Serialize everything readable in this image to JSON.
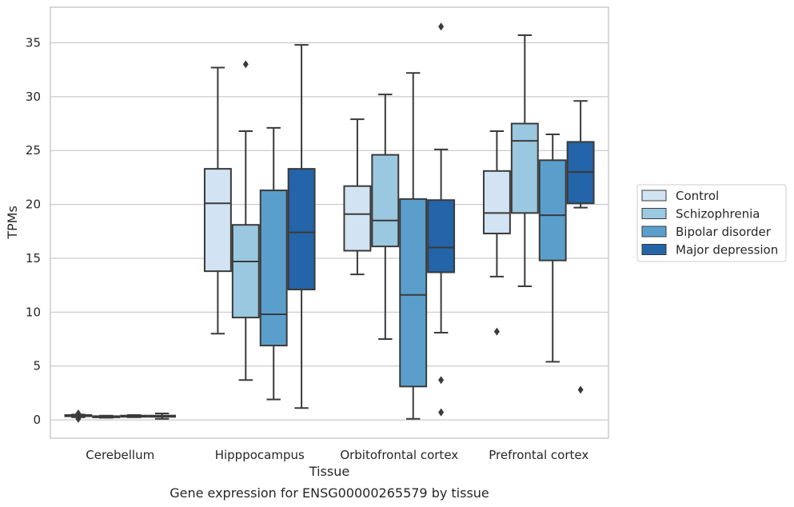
{
  "chart_data": {
    "type": "box",
    "title": "",
    "caption": "Gene expression for ENSG00000265579 by tissue",
    "xlabel": "Tissue",
    "ylabel": "TPMs",
    "ylim": [
      -1.7,
      38.3
    ],
    "yticks": [
      0,
      5,
      10,
      15,
      20,
      25,
      30,
      35
    ],
    "grid": "horizontal",
    "legend_position": "right",
    "categories": [
      "Cerebellum",
      "Hipppocampus",
      "Orbitofrontal cortex",
      "Prefrontal cortex"
    ],
    "series": [
      {
        "name": "Control",
        "color": "#d2e3f3",
        "boxes": [
          {
            "whislo": 0.25,
            "q1": 0.35,
            "med": 0.4,
            "q3": 0.45,
            "whishi": 0.5,
            "fliers": [
              0.1,
              0.6
            ]
          },
          {
            "whislo": 8.0,
            "q1": 13.8,
            "med": 20.1,
            "q3": 23.3,
            "whishi": 32.7,
            "fliers": []
          },
          {
            "whislo": 13.5,
            "q1": 15.7,
            "med": 19.1,
            "q3": 21.7,
            "whishi": 27.9,
            "fliers": []
          },
          {
            "whislo": 13.3,
            "q1": 17.3,
            "med": 19.2,
            "q3": 23.1,
            "whishi": 26.8,
            "fliers": [
              8.2
            ]
          }
        ]
      },
      {
        "name": "Schizophrenia",
        "color": "#9ac8e0",
        "boxes": [
          {
            "whislo": 0.2,
            "q1": 0.25,
            "med": 0.3,
            "q3": 0.35,
            "whishi": 0.4,
            "fliers": []
          },
          {
            "whislo": 3.7,
            "q1": 9.5,
            "med": 14.7,
            "q3": 18.1,
            "whishi": 26.8,
            "fliers": [
              33.0
            ]
          },
          {
            "whislo": 7.5,
            "q1": 16.1,
            "med": 18.5,
            "q3": 24.6,
            "whishi": 30.2,
            "fliers": []
          },
          {
            "whislo": 12.4,
            "q1": 19.2,
            "med": 25.9,
            "q3": 27.5,
            "whishi": 35.7,
            "fliers": []
          }
        ]
      },
      {
        "name": "Bipolar disorder",
        "color": "#5a9fcc",
        "boxes": [
          {
            "whislo": 0.25,
            "q1": 0.3,
            "med": 0.35,
            "q3": 0.4,
            "whishi": 0.45,
            "fliers": []
          },
          {
            "whislo": 1.9,
            "q1": 6.9,
            "med": 9.8,
            "q3": 21.3,
            "whishi": 27.1,
            "fliers": []
          },
          {
            "whislo": 0.1,
            "q1": 3.1,
            "med": 11.6,
            "q3": 20.5,
            "whishi": 32.2,
            "fliers": []
          },
          {
            "whislo": 5.4,
            "q1": 14.8,
            "med": 19.0,
            "q3": 24.1,
            "whishi": 26.5,
            "fliers": []
          }
        ]
      },
      {
        "name": "Major depression",
        "color": "#2464a8",
        "boxes": [
          {
            "whislo": 0.1,
            "q1": 0.3,
            "med": 0.35,
            "q3": 0.4,
            "whishi": 0.6,
            "fliers": []
          },
          {
            "whislo": 1.1,
            "q1": 12.1,
            "med": 17.4,
            "q3": 23.3,
            "whishi": 34.8,
            "fliers": []
          },
          {
            "whislo": 8.1,
            "q1": 13.7,
            "med": 16.0,
            "q3": 20.4,
            "whishi": 25.1,
            "fliers": [
              3.7,
              0.7,
              36.5
            ]
          },
          {
            "whislo": 19.7,
            "q1": 20.1,
            "med": 23.0,
            "q3": 25.8,
            "whishi": 29.6,
            "fliers": [
              2.8
            ]
          }
        ]
      }
    ]
  }
}
